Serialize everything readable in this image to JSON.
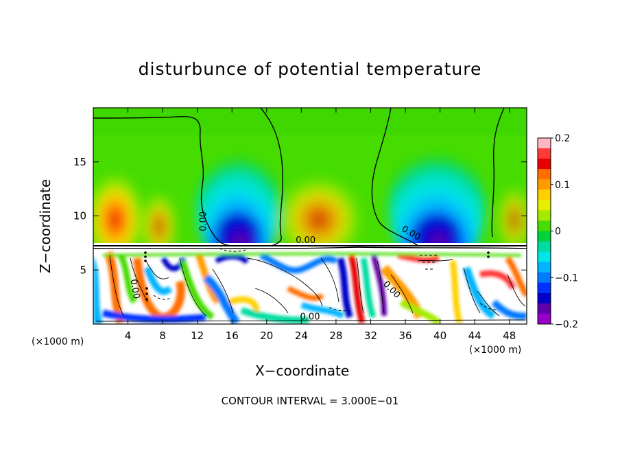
{
  "chart_data": {
    "type": "heatmap",
    "title": "disturbunce of potential temperature",
    "xlabel": "X−coordinate",
    "ylabel": "Z−coordinate",
    "x_unit_left": "(×1000 m)",
    "x_unit_right": "(×1000 m)",
    "xlim": [
      0,
      50
    ],
    "ylim": [
      0,
      20
    ],
    "x_ticks": [
      4,
      8,
      12,
      16,
      20,
      24,
      28,
      32,
      36,
      40,
      44,
      48
    ],
    "x_tick_labels": [
      "4",
      "8",
      "12",
      "16",
      "20",
      "24",
      "28",
      "32",
      "36",
      "40",
      "44",
      "48"
    ],
    "y_ticks": [
      5,
      10,
      15
    ],
    "y_tick_labels": [
      "5",
      "10",
      "15"
    ],
    "colorbar": {
      "range": [
        -0.2,
        0.2
      ],
      "tick_values": [
        0.2,
        0.1,
        0,
        -0.1,
        -0.2
      ],
      "tick_labels": [
        "0.2",
        "0.1",
        "0",
        "−0.1",
        "−0.2"
      ],
      "colors": [
        "#ffb6c1",
        "#ff3838",
        "#e80000",
        "#ff6e00",
        "#ff9c00",
        "#ffd000",
        "#e6ee00",
        "#a4ea00",
        "#46dc00",
        "#00d23c",
        "#00dca0",
        "#00e6e6",
        "#00b4ff",
        "#0078ff",
        "#0032ff",
        "#0000c8",
        "#6000a8",
        "#9600c8"
      ]
    },
    "contour_labels": [
      {
        "text": "0.00",
        "x": 13.0,
        "z": 9.5,
        "rotation": -90
      },
      {
        "text": "0.00",
        "x": 24.5,
        "z": 7.5,
        "rotation": 0
      },
      {
        "text": "0.00",
        "x": 36.5,
        "z": 8.2,
        "rotation": 30
      },
      {
        "text": "0.00",
        "x": 34.2,
        "z": 3.0,
        "rotation": 45
      },
      {
        "text": "0.00",
        "x": 25.0,
        "z": 0.4,
        "rotation": 0
      },
      {
        "text": "0.00",
        "x": 4.5,
        "z": 3.2,
        "rotation": 80
      }
    ],
    "warm_anomalies": [
      {
        "x": 2.5,
        "z": 9.8,
        "value": 0.14
      },
      {
        "x": 8.0,
        "z": 10.0,
        "value": 0.08
      },
      {
        "x": 25.5,
        "z": 10.2,
        "value": 0.11
      },
      {
        "x": 47.5,
        "z": 10.8,
        "value": 0.07
      }
    ],
    "cold_anomalies": [
      {
        "x": 16.8,
        "z": 10.2,
        "value": -0.19
      },
      {
        "x": 39.8,
        "z": 10.2,
        "value": -0.19
      }
    ],
    "interface_z": 7.3,
    "footnote": "CONTOUR INTERVAL = 3.000E−01"
  }
}
